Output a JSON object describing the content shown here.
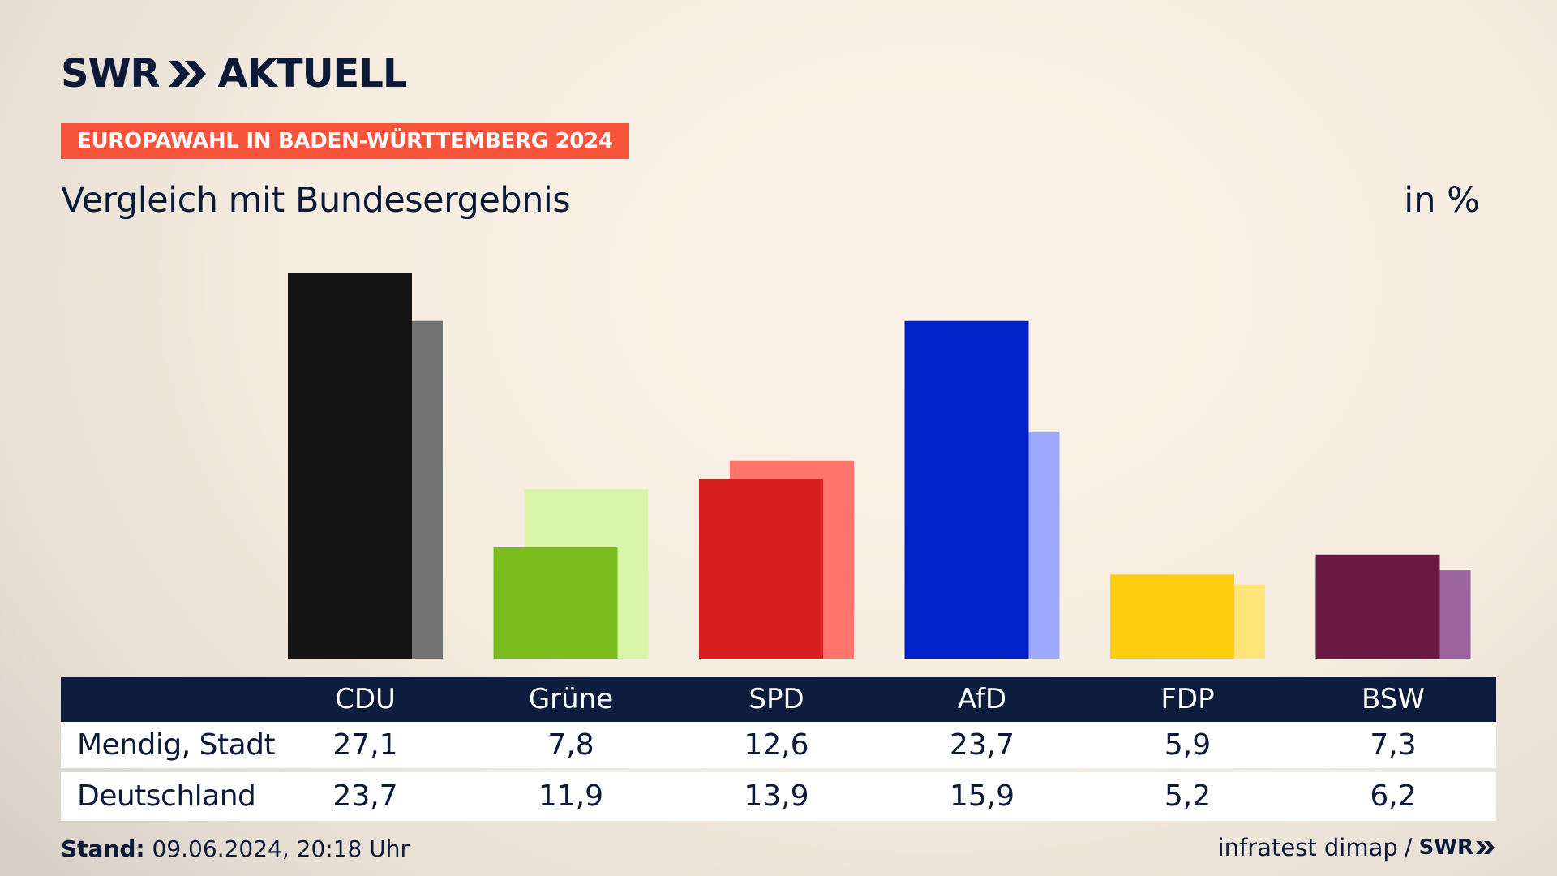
{
  "header": {
    "logo_text": "SWR",
    "logo_suffix": "AKTUELL",
    "tag": "EUROPAWAHL IN BADEN-WÜRTTEMBERG 2024",
    "subtitle": "Vergleich mit Bundesergebnis",
    "unit": "in %"
  },
  "chart_data": {
    "type": "bar",
    "categories": [
      "CDU",
      "Grüne",
      "SPD",
      "AfD",
      "FDP",
      "BSW"
    ],
    "series": [
      {
        "name": "Mendig, Stadt",
        "values": [
          27.1,
          7.8,
          12.6,
          23.7,
          5.9,
          7.3
        ],
        "colors": [
          "#151515",
          "#7abd1d",
          "#d71f20",
          "#0221c8",
          "#ffcd0c",
          "#6a1a42"
        ]
      },
      {
        "name": "Deutschland",
        "values": [
          23.7,
          11.9,
          13.9,
          15.9,
          5.2,
          6.2
        ],
        "colors": [
          "#737373",
          "#d8f5a9",
          "#ff756c",
          "#9fa8ff",
          "#ffe477",
          "#9b649f"
        ]
      }
    ],
    "ylim": [
      0,
      27.1
    ]
  },
  "table": {
    "rows": [
      {
        "label": "Mendig, Stadt",
        "values": [
          "27,1",
          "7,8",
          "12,6",
          "23,7",
          "5,9",
          "7,3"
        ]
      },
      {
        "label": "Deutschland",
        "values": [
          "23,7",
          "11,9",
          "13,9",
          "15,9",
          "5,2",
          "6,2"
        ]
      }
    ]
  },
  "footer": {
    "stand_label": "Stand:",
    "stand_value": "09.06.2024, 20:18 Uhr",
    "source": "infratest dimap",
    "separator": "/",
    "brand": "SWR"
  }
}
